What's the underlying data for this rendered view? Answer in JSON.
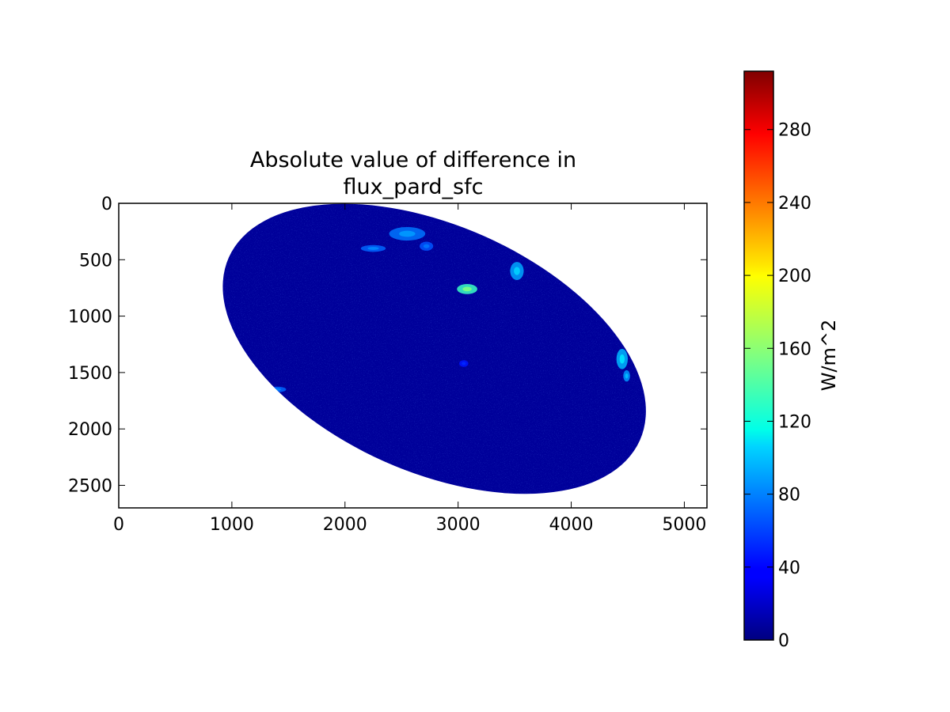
{
  "chart_data": {
    "type": "heatmap",
    "title_lines": [
      "Absolute value of difference in",
      "flux_pard_sfc"
    ],
    "xlabel": "",
    "ylabel": "",
    "x_range": [
      0,
      5200
    ],
    "y_range": [
      0,
      2700
    ],
    "y_inverted": true,
    "x_ticks": [
      {
        "value": 0,
        "label": "0"
      },
      {
        "value": 1000,
        "label": "1000"
      },
      {
        "value": 2000,
        "label": "2000"
      },
      {
        "value": 3000,
        "label": "3000"
      },
      {
        "value": 4000,
        "label": "4000"
      },
      {
        "value": 5000,
        "label": "5000"
      }
    ],
    "y_ticks": [
      {
        "value": 0,
        "label": "0"
      },
      {
        "value": 500,
        "label": "500"
      },
      {
        "value": 1000,
        "label": "1000"
      },
      {
        "value": 1500,
        "label": "1500"
      },
      {
        "value": 2000,
        "label": "2000"
      },
      {
        "value": 2500,
        "label": "2500"
      }
    ],
    "colormap": "jet",
    "colorbar": {
      "label": "W/m^2",
      "range": [
        0,
        312
      ],
      "ticks": [
        {
          "value": 0,
          "label": "0"
        },
        {
          "value": 40,
          "label": "40"
        },
        {
          "value": 80,
          "label": "80"
        },
        {
          "value": 120,
          "label": "120"
        },
        {
          "value": 160,
          "label": "160"
        },
        {
          "value": 200,
          "label": "200"
        },
        {
          "value": 240,
          "label": "240"
        },
        {
          "value": 280,
          "label": "280"
        }
      ]
    },
    "disk": {
      "description_value_background": 8,
      "x_extent": [
        840,
        4740
      ],
      "y_extent": [
        20,
        2560
      ]
    },
    "features": [
      {
        "x": 2550,
        "y": 270,
        "rx": 160,
        "ry": 60,
        "value": 75
      },
      {
        "x": 2250,
        "y": 400,
        "rx": 110,
        "ry": 30,
        "value": 70
      },
      {
        "x": 2720,
        "y": 380,
        "rx": 60,
        "ry": 40,
        "value": 65
      },
      {
        "x": 3080,
        "y": 760,
        "rx": 90,
        "ry": 45,
        "value": 135
      },
      {
        "x": 3520,
        "y": 600,
        "rx": 60,
        "ry": 80,
        "value": 90
      },
      {
        "x": 4450,
        "y": 1380,
        "rx": 50,
        "ry": 90,
        "value": 95
      },
      {
        "x": 4490,
        "y": 1530,
        "rx": 30,
        "ry": 50,
        "value": 85
      },
      {
        "x": 1400,
        "y": 1650,
        "rx": 80,
        "ry": 25,
        "value": 70
      },
      {
        "x": 3050,
        "y": 1420,
        "rx": 40,
        "ry": 30,
        "value": 45
      }
    ]
  }
}
